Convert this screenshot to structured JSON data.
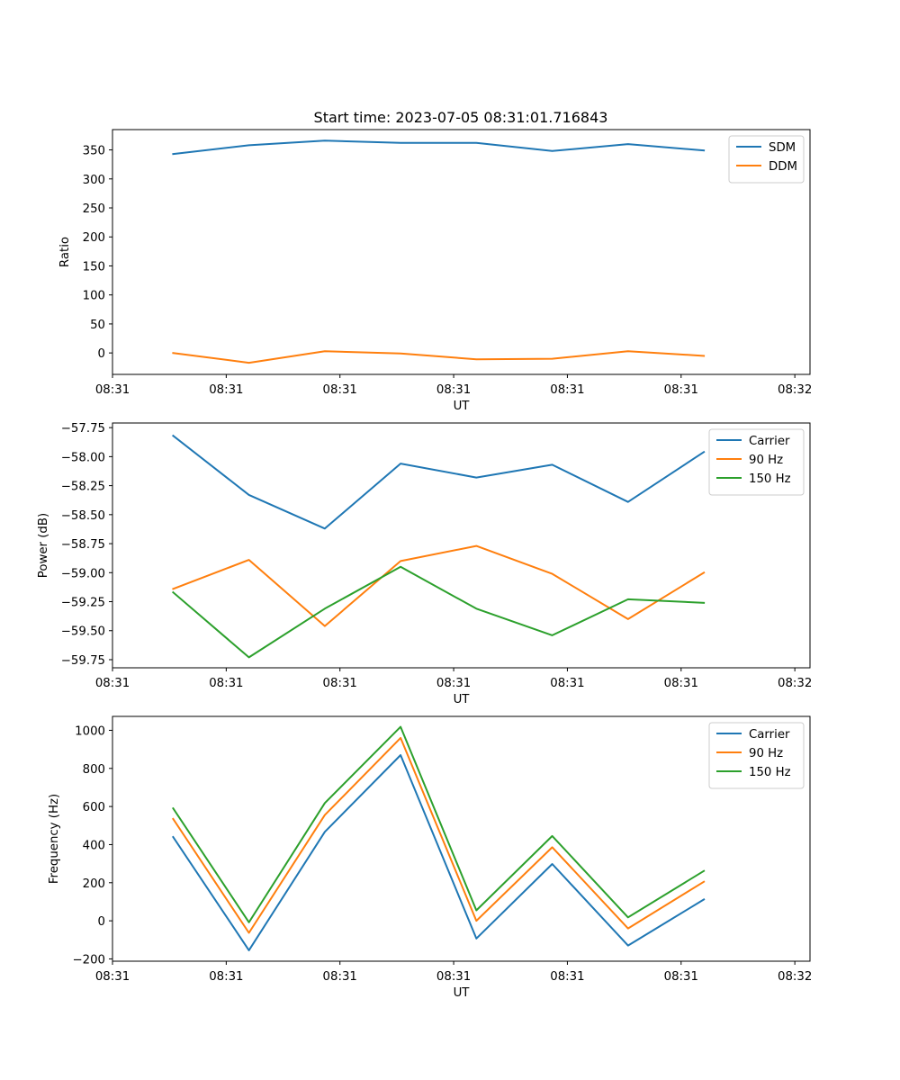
{
  "figure_title": "Start time: 2023-07-05 08:31:01.716843",
  "colors": {
    "blue": "#1f77b4",
    "orange": "#ff7f0e",
    "green": "#2ca02c"
  },
  "chart_data": [
    {
      "type": "line",
      "title": "Start time: 2023-07-05 08:31:01.716843",
      "xlabel": "UT",
      "ylabel": "Ratio",
      "x": [
        1,
        2,
        3,
        4,
        5,
        6,
        7,
        8
      ],
      "xlim": [
        0.2,
        9.4
      ],
      "x_ticks": [
        0.2,
        1.7,
        3.2,
        4.7,
        6.2,
        7.7,
        9.2
      ],
      "x_tick_labels": [
        "08:31",
        "08:31",
        "08:31",
        "08:31",
        "08:31",
        "08:31",
        "08:32"
      ],
      "ylim": [
        -37,
        385
      ],
      "y_ticks": [
        0,
        50,
        100,
        150,
        200,
        250,
        300,
        350
      ],
      "y_tick_labels": [
        "0",
        "50",
        "100",
        "150",
        "200",
        "250",
        "300",
        "350"
      ],
      "legend_position": "top-right",
      "series": [
        {
          "name": "SDM",
          "color": "#1f77b4",
          "values": [
            343,
            358,
            366,
            362,
            362,
            348,
            360,
            349
          ]
        },
        {
          "name": "DDM",
          "color": "#ff7f0e",
          "values": [
            0,
            -17,
            3,
            -1,
            -11,
            -10,
            3,
            -5
          ]
        }
      ]
    },
    {
      "type": "line",
      "title": "",
      "xlabel": "UT",
      "ylabel": "Power (dB)",
      "x": [
        1,
        2,
        3,
        4,
        5,
        6,
        7,
        8
      ],
      "xlim": [
        0.2,
        9.4
      ],
      "x_ticks": [
        0.2,
        1.7,
        3.2,
        4.7,
        6.2,
        7.7,
        9.2
      ],
      "x_tick_labels": [
        "08:31",
        "08:31",
        "08:31",
        "08:31",
        "08:31",
        "08:31",
        "08:32"
      ],
      "ylim": [
        -59.82,
        -57.71
      ],
      "y_ticks": [
        -59.75,
        -59.5,
        -59.25,
        -59.0,
        -58.75,
        -58.5,
        -58.25,
        -58.0,
        -57.75
      ],
      "y_tick_labels": [
        "−59.75",
        "−59.50",
        "−59.25",
        "−59.00",
        "−58.75",
        "−58.50",
        "−58.25",
        "−58.00",
        "−57.75"
      ],
      "legend_position": "top-right",
      "series": [
        {
          "name": "Carrier",
          "color": "#1f77b4",
          "values": [
            -57.82,
            -58.33,
            -58.62,
            -58.06,
            -58.18,
            -58.07,
            -58.39,
            -57.96
          ]
        },
        {
          "name": "90 Hz",
          "color": "#ff7f0e",
          "values": [
            -59.14,
            -58.89,
            -59.46,
            -58.9,
            -58.77,
            -59.01,
            -59.4,
            -59.0
          ]
        },
        {
          "name": "150 Hz",
          "color": "#2ca02c",
          "values": [
            -59.17,
            -59.73,
            -59.31,
            -58.95,
            -59.31,
            -59.54,
            -59.23,
            -59.26
          ]
        }
      ]
    },
    {
      "type": "line",
      "title": "",
      "xlabel": "UT",
      "ylabel": "Frequency (Hz)",
      "x": [
        1,
        2,
        3,
        4,
        5,
        6,
        7,
        8
      ],
      "xlim": [
        0.2,
        9.4
      ],
      "x_ticks": [
        0.2,
        1.7,
        3.2,
        4.7,
        6.2,
        7.7,
        9.2
      ],
      "x_tick_labels": [
        "08:31",
        "08:31",
        "08:31",
        "08:31",
        "08:31",
        "08:31",
        "08:32"
      ],
      "ylim": [
        -212,
        1073
      ],
      "y_ticks": [
        -200,
        0,
        200,
        400,
        600,
        800,
        1000
      ],
      "y_tick_labels": [
        "−200",
        "0",
        "200",
        "400",
        "600",
        "800",
        "1000"
      ],
      "legend_position": "top-right",
      "series": [
        {
          "name": "Carrier",
          "color": "#1f77b4",
          "values": [
            440,
            -155,
            467,
            870,
            -93,
            298,
            -130,
            112
          ]
        },
        {
          "name": "90 Hz",
          "color": "#ff7f0e",
          "values": [
            535,
            -63,
            555,
            960,
            0,
            386,
            -40,
            205
          ]
        },
        {
          "name": "150 Hz",
          "color": "#2ca02c",
          "values": [
            590,
            -8,
            618,
            1018,
            55,
            445,
            18,
            262
          ]
        }
      ]
    }
  ]
}
